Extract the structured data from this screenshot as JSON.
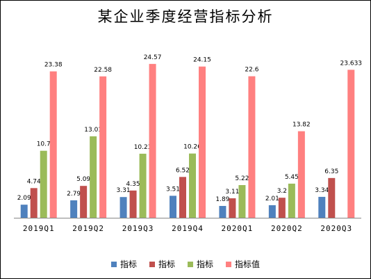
{
  "chart_data": {
    "type": "bar",
    "title": "某企业季度经营指标分析",
    "categories": [
      "2019Q1",
      "2019Q2",
      "2019Q3",
      "2019Q4",
      "2020Q1",
      "2020Q2",
      "2020Q3"
    ],
    "series": [
      {
        "name": "指标",
        "color": "#4f81bd",
        "values": [
          2.09,
          2.79,
          3.31,
          3.51,
          1.89,
          2.01,
          3.34
        ],
        "labels": [
          "2.09",
          "2.79",
          "3.31",
          "3.51",
          "1.89",
          "2.01",
          "3.34"
        ]
      },
      {
        "name": "指标",
        "color": "#c0504d",
        "values": [
          4.74,
          5.09,
          4.35,
          6.52,
          3.11,
          3.2,
          6.35
        ],
        "labels": [
          "4.74",
          "5.09",
          "4.35",
          "6.52",
          "3.11",
          "3.2",
          "6.35"
        ]
      },
      {
        "name": "指标",
        "color": "#9bbb59",
        "values": [
          10.7,
          13.01,
          10.23,
          10.26,
          5.22,
          5.45,
          null
        ],
        "labels": [
          "10.7",
          "13.01",
          "10.23",
          "10.26",
          "5.22",
          "5.45",
          ""
        ]
      },
      {
        "name": "指标值",
        "color": "#ff8080",
        "values": [
          23.38,
          22.58,
          24.57,
          24.15,
          22.6,
          13.82,
          23.633
        ],
        "labels": [
          "23.38",
          "22.58",
          "24.57",
          "24.15",
          "22.6",
          "13.82",
          "23.633"
        ]
      }
    ],
    "ylim": [
      0,
      25
    ],
    "grid": false,
    "legend_position": "bottom"
  }
}
